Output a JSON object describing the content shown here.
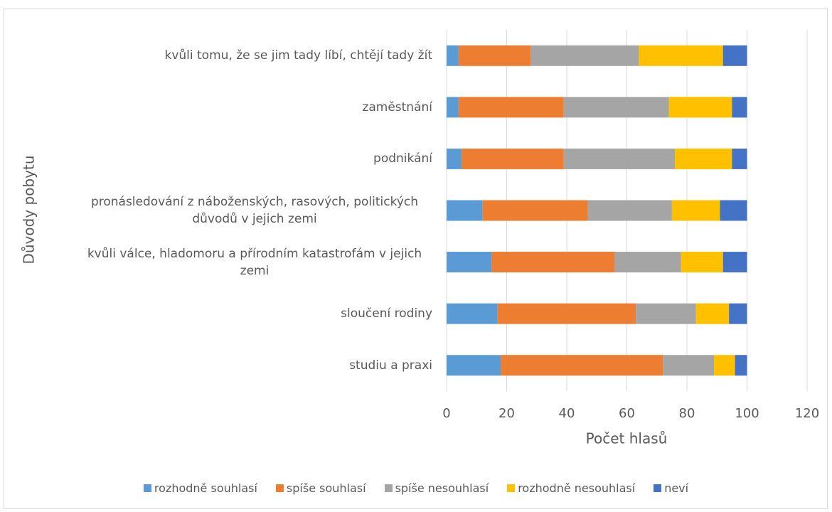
{
  "chart_data": {
    "type": "stacked-barh",
    "xlabel": "Počet hlasů",
    "ylabel": "Důvody pobytu",
    "categories": [
      "kvůli tomu, že se jim tady líbí, chtějí tady žít",
      "zaměstnání",
      "podnikání",
      "pronásledování z náboženských, rasových, politických důvodů v jejich zemi",
      "kvůli válce, hladomoru a přírodním katastrofám v jejich zemi",
      "sloučení rodiny",
      "studiu a praxi"
    ],
    "series": [
      {
        "name": "rozhodně souhlasí",
        "color": "#5b9bd5",
        "values": [
          4,
          4,
          5,
          12,
          15,
          17,
          18
        ]
      },
      {
        "name": "spíše souhlasí",
        "color": "#ed7d31",
        "values": [
          24,
          35,
          34,
          35,
          41,
          46,
          54
        ]
      },
      {
        "name": "spíše nesouhlasí",
        "color": "#a5a5a5",
        "values": [
          36,
          35,
          37,
          28,
          22,
          20,
          17
        ]
      },
      {
        "name": "rozhodně nesouhlasí",
        "color": "#ffc000",
        "values": [
          28,
          21,
          19,
          16,
          14,
          11,
          7
        ]
      },
      {
        "name": "neví",
        "color": "#4472c4",
        "values": [
          8,
          5,
          5,
          9,
          8,
          6,
          4
        ]
      }
    ],
    "xlim": [
      0,
      120
    ],
    "xticks": [
      0,
      20,
      40,
      60,
      80,
      100,
      120
    ],
    "grid": true,
    "legend": "bottom"
  }
}
